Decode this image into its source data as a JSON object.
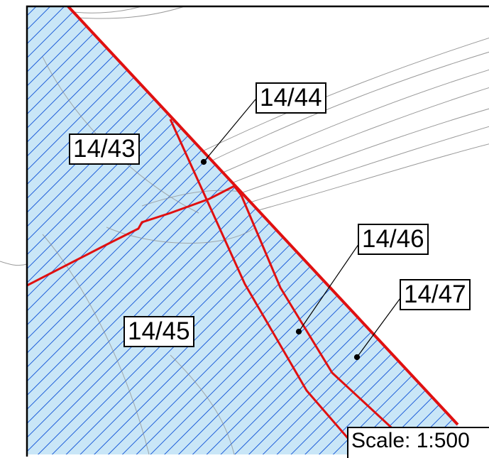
{
  "parcels": {
    "p1443": "14/43",
    "p1444": "14/44",
    "p1445": "14/45",
    "p1446": "14/46",
    "p1447": "14/47"
  },
  "scale": "Scale: 1:500",
  "colors": {
    "fill": "#c9e6f7",
    "hatch": "#1f5fd9",
    "boundary": "#e01010",
    "contour": "#9a9a9a",
    "frame": "#000000"
  }
}
